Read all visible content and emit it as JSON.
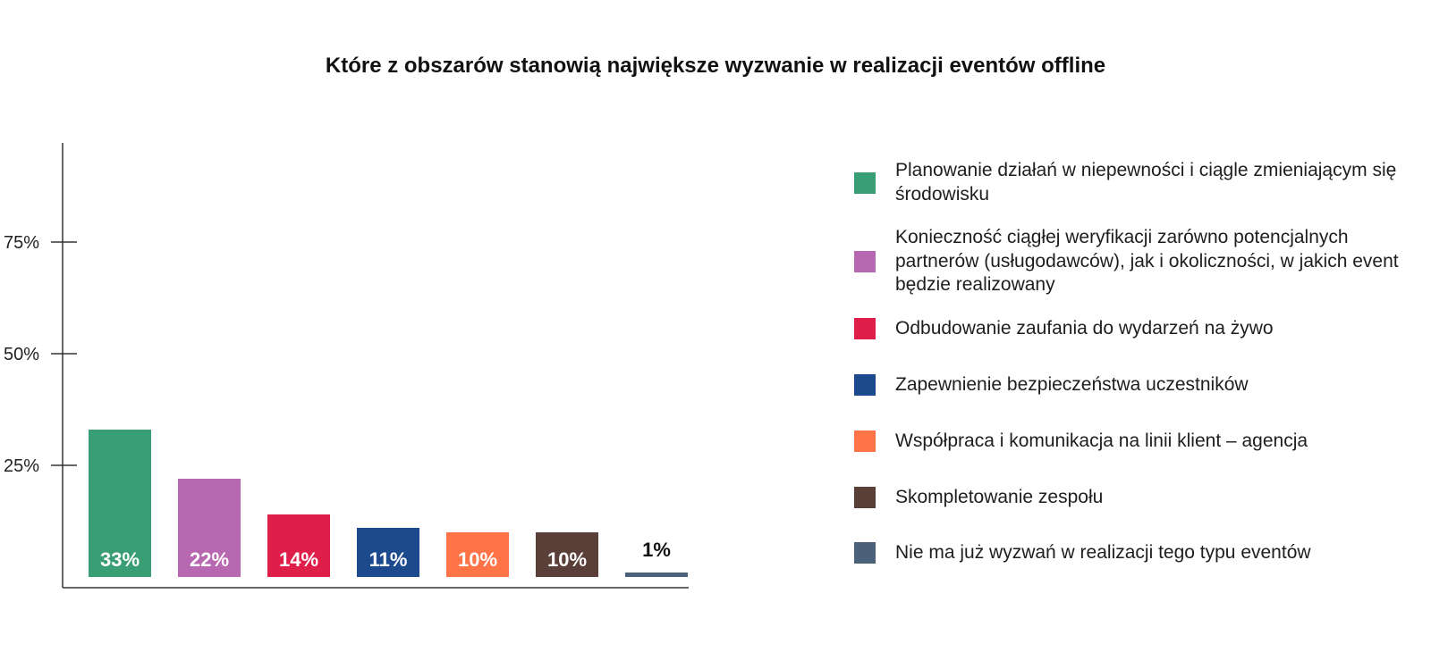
{
  "chart_data": {
    "type": "bar",
    "title": "Które z obszarów stanowią największe wyzwanie w realizacji eventów offline",
    "xlabel": "",
    "ylabel": "",
    "ylim": [
      0,
      100
    ],
    "yticks": [
      {
        "value": 25,
        "label": "25%"
      },
      {
        "value": 50,
        "label": "50%"
      },
      {
        "value": 75,
        "label": "75%"
      }
    ],
    "grid": false,
    "legend_position": "right",
    "categories": [
      "Planowanie działań w niepewności i ciągle zmieniającym się środowisku",
      "Konieczność ciągłej weryfikacji zarówno potencjalnych partnerów (usługodawców), jak i okoliczności, w jakich event będzie realizowany",
      "Odbudowanie zaufania do wydarzeń na żywo",
      "Zapewnienie bezpieczeństwa uczestników",
      "Współpraca i komunikacja na linii klient – agencja",
      "Skompletowanie zespołu",
      "Nie ma już wyzwań w realizacji tego typu eventów"
    ],
    "values": [
      33,
      22,
      14,
      11,
      10,
      10,
      1
    ],
    "data_labels": [
      "33%",
      "22%",
      "14%",
      "11%",
      "10%",
      "10%",
      "1%"
    ],
    "colors": [
      "#3a9e74",
      "#b867b1",
      "#e01e4a",
      "#1c4a8c",
      "#ff7446",
      "#5a3e38",
      "#4b6079"
    ]
  }
}
